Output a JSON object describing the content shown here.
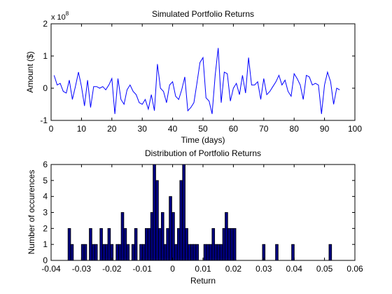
{
  "chart_data": [
    {
      "type": "line",
      "title": "Simulated Portfolio Returns",
      "xlabel": "Time (days)",
      "ylabel": "Amount ($)",
      "y_exponent_prefix": "x 10",
      "y_exponent": "8",
      "y_multiplier": 100000000,
      "xlim": [
        0,
        100
      ],
      "ylim": [
        -1,
        2
      ],
      "xticks": [
        0,
        10,
        20,
        30,
        40,
        50,
        60,
        70,
        80,
        90,
        100
      ],
      "yticks": [
        -1,
        0,
        1,
        2
      ],
      "grid": false,
      "line_color": "#0000ff",
      "x": [
        1,
        2,
        3,
        4,
        5,
        6,
        7,
        8,
        9,
        10,
        11,
        12,
        13,
        14,
        15,
        16,
        17,
        18,
        19,
        20,
        21,
        22,
        23,
        24,
        25,
        26,
        27,
        28,
        29,
        30,
        31,
        32,
        33,
        34,
        35,
        36,
        37,
        38,
        39,
        40,
        41,
        42,
        43,
        44,
        45,
        46,
        47,
        48,
        49,
        50,
        51,
        52,
        53,
        54,
        55,
        56,
        57,
        58,
        59,
        60,
        61,
        62,
        63,
        64,
        65,
        66,
        67,
        68,
        69,
        70,
        71,
        72,
        73,
        74,
        75,
        76,
        77,
        78,
        79,
        80,
        81,
        82,
        83,
        84,
        85,
        86,
        87,
        88,
        89,
        90,
        91,
        92,
        93,
        94,
        95
      ],
      "y": [
        0.4,
        0.1,
        0.15,
        -0.1,
        -0.15,
        0.25,
        -0.35,
        0.05,
        0.5,
        0.05,
        -0.55,
        0.25,
        -0.6,
        0.05,
        0.05,
        0.0,
        0.05,
        -0.05,
        0.1,
        0.3,
        -0.8,
        0.3,
        -0.35,
        -0.5,
        -0.05,
        0.1,
        -0.1,
        -0.2,
        -0.45,
        -0.5,
        -0.35,
        -0.65,
        -0.2,
        -0.7,
        0.75,
        0.0,
        -0.1,
        -0.45,
        0.1,
        0.2,
        -0.25,
        -0.35,
        -0.05,
        0.35,
        -0.7,
        -0.6,
        -0.45,
        0.15,
        0.8,
        0.95,
        -0.3,
        -0.4,
        -0.8,
        0.4,
        1.25,
        -0.45,
        0.5,
        0.45,
        -0.4,
        0.0,
        0.15,
        -0.2,
        0.4,
        -0.15,
        0.95,
        0.1,
        0.1,
        0.2,
        -0.35,
        0.3,
        -0.2,
        -0.1,
        0.05,
        0.2,
        0.4,
        0.1,
        0.25,
        -0.1,
        -0.25,
        0.45,
        0.3,
        0.1,
        -0.35,
        0.4,
        0.35,
        0.1,
        0.15,
        0.1,
        -0.8,
        0.1,
        0.5,
        0.2,
        -0.5,
        0.0,
        -0.05
      ]
    },
    {
      "type": "bar",
      "title": "Distribution of Portfolio Returns",
      "xlabel": "Return",
      "ylabel": "Number of occurences",
      "xlim": [
        -0.04,
        0.06
      ],
      "ylim": [
        0,
        6
      ],
      "xticks": [
        -0.04,
        -0.03,
        -0.02,
        -0.01,
        0,
        0.01,
        0.02,
        0.03,
        0.04,
        0.05,
        0.06
      ],
      "xtick_labels": [
        "-0.04",
        "-0.03",
        "-0.02",
        "-0.01",
        "0",
        "0.01",
        "0.02",
        "0.03",
        "0.04",
        "0.05",
        "0.06"
      ],
      "yticks": [
        0,
        1,
        2,
        3,
        4,
        5,
        6
      ],
      "grid": false,
      "bar_width": 0.00087,
      "face_color": "#00007f",
      "edge_color": "#000000",
      "bins": [
        -0.034,
        -0.0331,
        -0.0296,
        -0.0287,
        -0.027,
        -0.0261,
        -0.0252,
        -0.0235,
        -0.0226,
        -0.0217,
        -0.0209,
        -0.02,
        -0.0182,
        -0.0173,
        -0.0165,
        -0.0156,
        -0.0147,
        -0.013,
        -0.0121,
        -0.0104,
        -0.0095,
        -0.0086,
        -0.0077,
        -0.0068,
        -0.006,
        -0.0051,
        -0.0042,
        -0.0033,
        -0.0024,
        -0.0016,
        -0.0007,
        0.0002,
        0.0011,
        0.002,
        0.0028,
        0.0037,
        0.0046,
        0.0055,
        0.0064,
        0.0072,
        0.0081,
        0.0107,
        0.0116,
        0.0125,
        0.0134,
        0.0142,
        0.0151,
        0.016,
        0.0169,
        0.0177,
        0.0186,
        0.0195,
        0.0204,
        0.03,
        0.0343,
        0.0396,
        0.0519
      ],
      "counts": [
        2,
        1,
        1,
        1,
        2,
        1,
        1,
        2,
        1,
        1,
        2,
        1,
        1,
        1,
        3,
        2,
        1,
        1,
        2,
        1,
        1,
        2,
        2,
        3,
        6,
        5,
        2,
        3,
        1,
        2,
        4,
        3,
        1,
        2,
        5,
        6,
        2,
        1,
        1,
        1,
        1,
        1,
        1,
        1,
        2,
        1,
        1,
        1,
        2,
        3,
        2,
        2,
        2,
        1,
        1,
        1,
        1
      ]
    }
  ]
}
